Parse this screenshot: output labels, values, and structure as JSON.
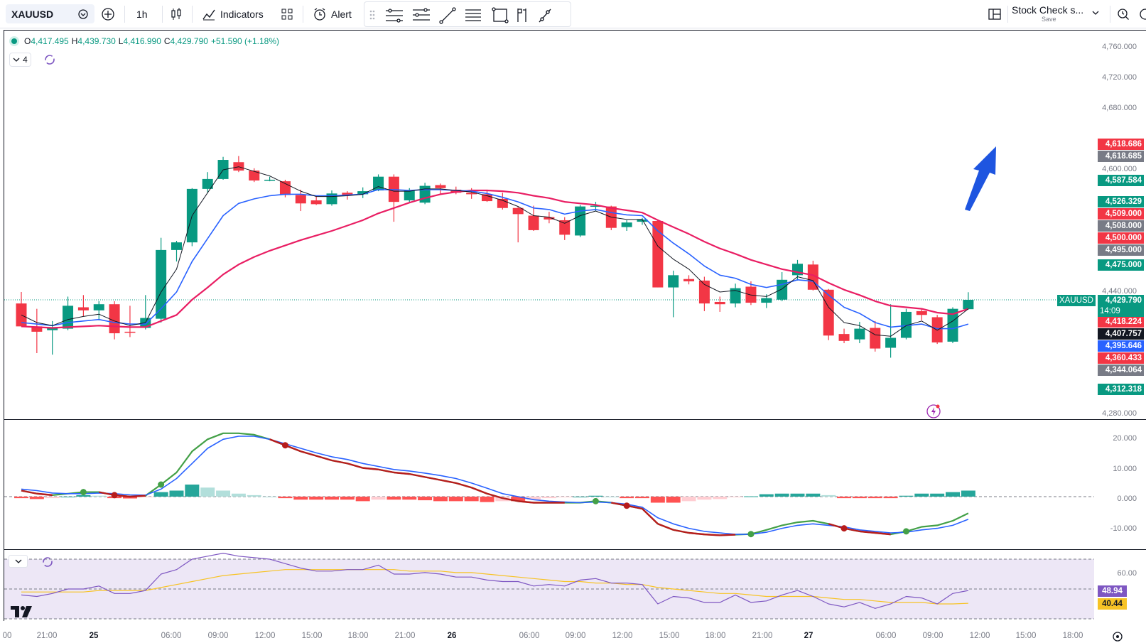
{
  "toolbar": {
    "symbol": "XAUUSD",
    "interval": "1h",
    "indicators_label": "Indicators",
    "alert_label": "Alert",
    "layout_name": "Stock Check s...",
    "layout_save": "Save"
  },
  "legend": {
    "o_label": "O",
    "o_value": "4,417.495",
    "h_label": "H",
    "h_value": "4,439.730",
    "l_label": "L",
    "l_value": "4,416.990",
    "c_label": "C",
    "c_value": "4,429.790",
    "change": "+51.590 (+1.18%)",
    "indicator_count": "4"
  },
  "price_axis": {
    "ticks": [
      "4,760.000",
      "4,720.000",
      "4,680.000",
      "4,600.000",
      "4,440.000",
      "4,280.000"
    ],
    "tags": [
      {
        "text": "4,618.686",
        "color": "#f23645"
      },
      {
        "text": "4,618.685",
        "color": "#787b86"
      },
      {
        "text": "4,587.584",
        "color": "#089981"
      },
      {
        "text": "4,526.329",
        "color": "#089981"
      },
      {
        "text": "4,509.000",
        "color": "#f23645"
      },
      {
        "text": "4,508.000",
        "color": "#787b86"
      },
      {
        "text": "4,500.000",
        "color": "#f23645"
      },
      {
        "text": "4,495.000",
        "color": "#787b86"
      },
      {
        "text": "4,475.000",
        "color": "#089981"
      },
      {
        "text": "4,418.224",
        "color": "#f23645"
      },
      {
        "text": "4,407.757",
        "color": "#131722"
      },
      {
        "text": "4,395.646",
        "color": "#2962ff"
      },
      {
        "text": "4,360.433",
        "color": "#f23645"
      },
      {
        "text": "4,344.064",
        "color": "#787b86"
      },
      {
        "text": "4,312.318",
        "color": "#089981"
      }
    ],
    "last_symbol": "XAUUSD",
    "last_price": "4,429.790",
    "countdown": "14:09"
  },
  "macd_axis": {
    "ticks": [
      "20.000",
      "10.000",
      "0.000",
      "-10.000"
    ]
  },
  "rsi_axis": {
    "ticks": [
      "60.00"
    ],
    "rsi_value": "48.94",
    "rsi_ma_value": "40.44"
  },
  "time_axis": {
    "labels": [
      {
        "text": "00",
        "bold": false
      },
      {
        "text": "21:00",
        "bold": false
      },
      {
        "text": "25",
        "bold": true
      },
      {
        "text": "06:00",
        "bold": false
      },
      {
        "text": "09:00",
        "bold": false
      },
      {
        "text": "12:00",
        "bold": false
      },
      {
        "text": "15:00",
        "bold": false
      },
      {
        "text": "18:00",
        "bold": false
      },
      {
        "text": "21:00",
        "bold": false
      },
      {
        "text": "26",
        "bold": true
      },
      {
        "text": "06:00",
        "bold": false
      },
      {
        "text": "09:00",
        "bold": false
      },
      {
        "text": "12:00",
        "bold": false
      },
      {
        "text": "15:00",
        "bold": false
      },
      {
        "text": "18:00",
        "bold": false
      },
      {
        "text": "21:00",
        "bold": false
      },
      {
        "text": "27",
        "bold": true
      },
      {
        "text": "06:00",
        "bold": false
      },
      {
        "text": "09:00",
        "bold": false
      },
      {
        "text": "12:00",
        "bold": false
      },
      {
        "text": "15:00",
        "bold": false
      },
      {
        "text": "18:00",
        "bold": false
      }
    ]
  },
  "colors": {
    "up": "#089981",
    "down": "#f23645",
    "ema_fast": "#131722",
    "ema_mid": "#2962ff",
    "ema_slow": "#e91e63",
    "arrow": "#1e55e0",
    "rsi_line": "#7e57c2",
    "rsi_ma": "#f7c325",
    "rsi_band": "#ede7f6"
  },
  "chart_data": {
    "type": "candlestick",
    "candles": [
      {
        "o": 4425,
        "h": 4440,
        "l": 4395,
        "c": 4395
      },
      {
        "o": 4395,
        "h": 4418,
        "l": 4360,
        "c": 4388
      },
      {
        "o": 4390,
        "h": 4402,
        "l": 4358,
        "c": 4394
      },
      {
        "o": 4392,
        "h": 4434,
        "l": 4390,
        "c": 4422
      },
      {
        "o": 4420,
        "h": 4436,
        "l": 4408,
        "c": 4416
      },
      {
        "o": 4416,
        "h": 4428,
        "l": 4403,
        "c": 4424
      },
      {
        "o": 4424,
        "h": 4428,
        "l": 4378,
        "c": 4386
      },
      {
        "o": 4388,
        "h": 4422,
        "l": 4381,
        "c": 4387
      },
      {
        "o": 4393,
        "h": 4436,
        "l": 4391,
        "c": 4406
      },
      {
        "o": 4405,
        "h": 4511,
        "l": 4400,
        "c": 4495
      },
      {
        "o": 4495,
        "h": 4507,
        "l": 4480,
        "c": 4505
      },
      {
        "o": 4505,
        "h": 4576,
        "l": 4500,
        "c": 4575
      },
      {
        "o": 4575,
        "h": 4597,
        "l": 4570,
        "c": 4588
      },
      {
        "o": 4588,
        "h": 4617,
        "l": 4587,
        "c": 4613
      },
      {
        "o": 4610,
        "h": 4618,
        "l": 4597,
        "c": 4599
      },
      {
        "o": 4599,
        "h": 4602,
        "l": 4584,
        "c": 4586
      },
      {
        "o": 4587,
        "h": 4591,
        "l": 4585,
        "c": 4587
      },
      {
        "o": 4585,
        "h": 4587,
        "l": 4564,
        "c": 4567
      },
      {
        "o": 4567,
        "h": 4574,
        "l": 4546,
        "c": 4556
      },
      {
        "o": 4560,
        "h": 4566,
        "l": 4554,
        "c": 4555
      },
      {
        "o": 4555,
        "h": 4573,
        "l": 4553,
        "c": 4569
      },
      {
        "o": 4570,
        "h": 4572,
        "l": 4561,
        "c": 4567
      },
      {
        "o": 4568,
        "h": 4577,
        "l": 4563,
        "c": 4572
      },
      {
        "o": 4573,
        "h": 4594,
        "l": 4572,
        "c": 4591
      },
      {
        "o": 4591,
        "h": 4594,
        "l": 4532,
        "c": 4558
      },
      {
        "o": 4560,
        "h": 4576,
        "l": 4558,
        "c": 4573
      },
      {
        "o": 4557,
        "h": 4583,
        "l": 4555,
        "c": 4579
      },
      {
        "o": 4580,
        "h": 4582,
        "l": 4567,
        "c": 4576
      },
      {
        "o": 4574,
        "h": 4578,
        "l": 4568,
        "c": 4570
      },
      {
        "o": 4570,
        "h": 4576,
        "l": 4562,
        "c": 4568
      },
      {
        "o": 4568,
        "h": 4574,
        "l": 4558,
        "c": 4559
      },
      {
        "o": 4562,
        "h": 4570,
        "l": 4548,
        "c": 4550
      },
      {
        "o": 4550,
        "h": 4552,
        "l": 4505,
        "c": 4542
      },
      {
        "o": 4540,
        "h": 4553,
        "l": 4520,
        "c": 4521
      },
      {
        "o": 4538,
        "h": 4545,
        "l": 4530,
        "c": 4535
      },
      {
        "o": 4534,
        "h": 4538,
        "l": 4508,
        "c": 4515
      },
      {
        "o": 4514,
        "h": 4554,
        "l": 4512,
        "c": 4552
      },
      {
        "o": 4553,
        "h": 4558,
        "l": 4546,
        "c": 4553
      },
      {
        "o": 4552,
        "h": 4553,
        "l": 4521,
        "c": 4524
      },
      {
        "o": 4525,
        "h": 4534,
        "l": 4520,
        "c": 4531
      },
      {
        "o": 4532,
        "h": 4537,
        "l": 4528,
        "c": 4535
      },
      {
        "o": 4533,
        "h": 4535,
        "l": 4446,
        "c": 4446
      },
      {
        "o": 4446,
        "h": 4468,
        "l": 4407,
        "c": 4462
      },
      {
        "o": 4457,
        "h": 4462,
        "l": 4450,
        "c": 4454
      },
      {
        "o": 4455,
        "h": 4460,
        "l": 4415,
        "c": 4425
      },
      {
        "o": 4427,
        "h": 4434,
        "l": 4414,
        "c": 4424
      },
      {
        "o": 4425,
        "h": 4451,
        "l": 4420,
        "c": 4445
      },
      {
        "o": 4447,
        "h": 4454,
        "l": 4423,
        "c": 4426
      },
      {
        "o": 4426,
        "h": 4437,
        "l": 4419,
        "c": 4432
      },
      {
        "o": 4430,
        "h": 4466,
        "l": 4428,
        "c": 4456
      },
      {
        "o": 4462,
        "h": 4482,
        "l": 4455,
        "c": 4477
      },
      {
        "o": 4476,
        "h": 4481,
        "l": 4442,
        "c": 4443
      },
      {
        "o": 4443,
        "h": 4444,
        "l": 4377,
        "c": 4383
      },
      {
        "o": 4385,
        "h": 4392,
        "l": 4373,
        "c": 4376
      },
      {
        "o": 4378,
        "h": 4401,
        "l": 4373,
        "c": 4392
      },
      {
        "o": 4393,
        "h": 4402,
        "l": 4362,
        "c": 4366
      },
      {
        "o": 4367,
        "h": 4424,
        "l": 4354,
        "c": 4380
      },
      {
        "o": 4380,
        "h": 4418,
        "l": 4378,
        "c": 4414
      },
      {
        "o": 4415,
        "h": 4418,
        "l": 4403,
        "c": 4410
      },
      {
        "o": 4407,
        "h": 4410,
        "l": 4372,
        "c": 4374
      },
      {
        "o": 4375,
        "h": 4420,
        "l": 4373,
        "c": 4418
      },
      {
        "o": 4417.495,
        "h": 4439.73,
        "l": 4416.99,
        "c": 4429.79
      }
    ],
    "ema_fast": [
      4410,
      4400,
      4396,
      4404,
      4408,
      4411,
      4402,
      4396,
      4400,
      4440,
      4470,
      4540,
      4570,
      4600,
      4604,
      4598,
      4592,
      4582,
      4572,
      4565,
      4565,
      4566,
      4568,
      4578,
      4572,
      4572,
      4575,
      4575,
      4573,
      4571,
      4566,
      4560,
      4552,
      4540,
      4538,
      4530,
      4540,
      4546,
      4538,
      4535,
      4535,
      4500,
      4483,
      4470,
      4450,
      4440,
      4442,
      4436,
      4434,
      4444,
      4460,
      4455,
      4420,
      4400,
      4396,
      4384,
      4382,
      4396,
      4402,
      4390,
      4402,
      4418
    ],
    "ema_mid": [
      4400,
      4398,
      4396,
      4400,
      4402,
      4404,
      4400,
      4398,
      4398,
      4418,
      4440,
      4480,
      4510,
      4540,
      4556,
      4562,
      4566,
      4568,
      4568,
      4566,
      4566,
      4567,
      4568,
      4574,
      4574,
      4573,
      4574,
      4574,
      4573,
      4572,
      4569,
      4564,
      4558,
      4550,
      4548,
      4542,
      4546,
      4548,
      4544,
      4541,
      4540,
      4520,
      4504,
      4490,
      4474,
      4462,
      4458,
      4450,
      4446,
      4450,
      4456,
      4454,
      4436,
      4420,
      4412,
      4400,
      4394,
      4396,
      4398,
      4392,
      4392,
      4398
    ],
    "ema_slow": [
      4395,
      4394,
      4393,
      4394,
      4395,
      4396,
      4395,
      4394,
      4394,
      4402,
      4410,
      4430,
      4446,
      4463,
      4476,
      4486,
      4494,
      4501,
      4508,
      4514,
      4520,
      4527,
      4534,
      4543,
      4550,
      4557,
      4563,
      4568,
      4571,
      4573,
      4573,
      4572,
      4570,
      4566,
      4563,
      4558,
      4556,
      4554,
      4550,
      4547,
      4544,
      4534,
      4525,
      4516,
      4506,
      4497,
      4490,
      4482,
      4476,
      4470,
      4466,
      4462,
      4452,
      4443,
      4436,
      4428,
      4422,
      4420,
      4418,
      4413,
      4411,
      4418
    ],
    "macd": [
      2,
      1,
      0.5,
      1,
      1.5,
      1.5,
      0.5,
      0,
      0.3,
      4,
      8,
      15,
      19,
      21,
      21,
      20.5,
      19,
      17,
      15,
      13.5,
      12,
      11,
      9.5,
      9,
      8,
      7.5,
      6.5,
      5.5,
      4.5,
      3,
      1,
      -0.5,
      -1.5,
      -2,
      -2,
      -2,
      -2,
      -1.5,
      -2,
      -3,
      -4,
      -9,
      -11,
      -12,
      -12.5,
      -12.8,
      -12.6,
      -12.4,
      -11,
      -9.5,
      -8.5,
      -8,
      -9,
      -10.5,
      -11.5,
      -12,
      -12.5,
      -11.5,
      -10,
      -9.5,
      -8,
      -5.5
    ],
    "macd_signal": [
      2.5,
      2,
      1.2,
      1,
      1,
      1.2,
      1,
      0.6,
      0.5,
      2.5,
      6,
      11,
      16,
      19,
      20,
      20,
      19,
      17.5,
      16,
      14.5,
      13.2,
      12.3,
      11,
      10,
      9,
      8.5,
      7.8,
      7,
      6,
      4.5,
      2.8,
      1,
      0,
      -1,
      -1.5,
      -1.8,
      -2,
      -1.8,
      -2,
      -2.5,
      -3.5,
      -7,
      -9,
      -10.5,
      -11.5,
      -12,
      -12.5,
      -12.5,
      -11.8,
      -10.5,
      -9.5,
      -9,
      -9.5,
      -10,
      -11,
      -11.5,
      -12,
      -11.8,
      -11,
      -10.5,
      -9.5,
      -7.5
    ],
    "macd_hist": [
      -0.5,
      -0.8,
      -0.5,
      0,
      0.5,
      0.3,
      -0.5,
      -0.6,
      -0.2,
      1.5,
      2,
      4,
      3,
      2,
      1,
      0.5,
      0,
      -0.5,
      -1,
      -1,
      -1,
      -1,
      -1.5,
      -1,
      -1,
      -1,
      -1.2,
      -1.5,
      -1.5,
      -1.5,
      -1.8,
      -1.5,
      -1.5,
      -1,
      -0.5,
      -0.2,
      0,
      0.3,
      0,
      -0.5,
      -0.5,
      -2,
      -2,
      -1.5,
      -1,
      -0.8,
      -0.1,
      0.1,
      0.8,
      1,
      1,
      1,
      0.5,
      -0.5,
      -0.5,
      -0.5,
      -0.5,
      0.3,
      1,
      1,
      1.5,
      2
    ],
    "rsi": [
      46,
      45,
      47,
      50,
      50,
      52,
      47,
      47,
      49,
      60,
      63,
      70,
      72,
      74,
      72,
      71,
      70,
      67,
      64,
      62,
      62,
      63,
      63,
      66,
      60,
      60,
      61,
      60,
      58,
      58,
      56,
      55,
      55,
      52,
      53,
      52,
      56,
      57,
      54,
      54,
      53,
      40,
      45,
      44,
      41,
      41,
      46,
      41,
      42,
      46,
      49,
      45,
      40,
      38,
      41,
      37,
      40,
      45,
      44,
      40,
      47,
      49
    ],
    "rsi_ma": [
      48,
      48,
      48,
      48,
      48,
      49,
      49,
      49,
      49,
      51,
      53,
      55,
      57,
      59,
      60,
      61,
      62,
      63,
      63,
      63,
      63,
      63,
      63,
      63,
      63,
      62,
      62,
      62,
      61,
      61,
      60,
      59,
      58,
      57,
      56,
      55,
      55,
      54,
      54,
      53,
      53,
      51,
      50,
      49,
      48,
      47,
      47,
      46,
      45,
      45,
      45,
      45,
      44,
      43,
      43,
      42,
      41,
      41,
      41,
      40,
      40,
      40.44
    ]
  }
}
